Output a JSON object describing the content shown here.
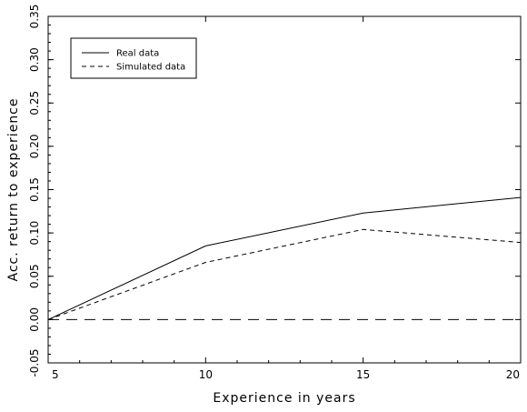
{
  "chart_data": {
    "type": "line",
    "title": "",
    "xlabel": "Experience in years",
    "ylabel": "Acc. return to experience",
    "xlim": [
      5,
      20
    ],
    "ylim": [
      -0.05,
      0.35
    ],
    "xticks": [
      5,
      10,
      15,
      20
    ],
    "xtick_labels": [
      "5",
      "10",
      "15",
      "20"
    ],
    "yticks": [
      -0.05,
      0.0,
      0.05,
      0.1,
      0.15,
      0.2,
      0.25,
      0.3,
      0.35
    ],
    "ytick_labels": [
      "-0.05",
      "0.00",
      "0.05",
      "0.10",
      "0.15",
      "0.20",
      "0.25",
      "0.30",
      "0.35"
    ],
    "grid": false,
    "legend_position": "top-left",
    "series": [
      {
        "name": "Real data",
        "style": "solid",
        "x": [
          5,
          10,
          15,
          20
        ],
        "y": [
          0.0,
          0.085,
          0.123,
          0.141
        ]
      },
      {
        "name": "Simulated data",
        "style": "dashed",
        "x": [
          5,
          10,
          15,
          20
        ],
        "y": [
          0.0,
          0.066,
          0.104,
          0.089
        ]
      }
    ],
    "reference_line": {
      "y": 0.0,
      "style": "long-dashed"
    }
  }
}
